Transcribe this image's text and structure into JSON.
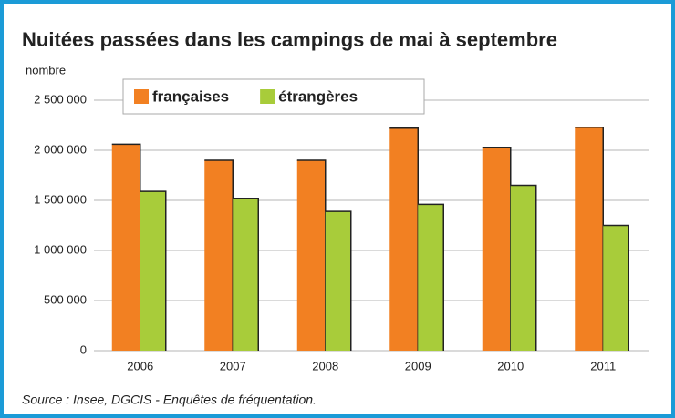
{
  "chart_data": {
    "type": "bar",
    "title": "Nuitées passées dans les campings de mai à septembre",
    "y_label": "nombre",
    "source": "Source : Insee, DGCIS - Enquêtes de fréquentation.",
    "categories": [
      "2006",
      "2007",
      "2008",
      "2009",
      "2010",
      "2011"
    ],
    "series": [
      {
        "name": "françaises",
        "color": "#f28022",
        "values": [
          2060000,
          1900000,
          1900000,
          2220000,
          2030000,
          2230000
        ]
      },
      {
        "name": "étrangères",
        "color": "#a8cc3a",
        "values": [
          1590000,
          1520000,
          1390000,
          1460000,
          1650000,
          1250000
        ]
      }
    ],
    "ylim": [
      0,
      2500000
    ],
    "yticks": [
      0,
      {
        "value": 500000,
        "label": "500 000"
      },
      {
        "value": 1000000,
        "label": "1 000 000"
      },
      {
        "value": 1500000,
        "label": "1 500 000"
      },
      {
        "value": 2000000,
        "label": "2 000 000"
      },
      {
        "value": 2500000,
        "label": "2 500 000"
      }
    ],
    "grid": true,
    "legend": "upper left"
  }
}
